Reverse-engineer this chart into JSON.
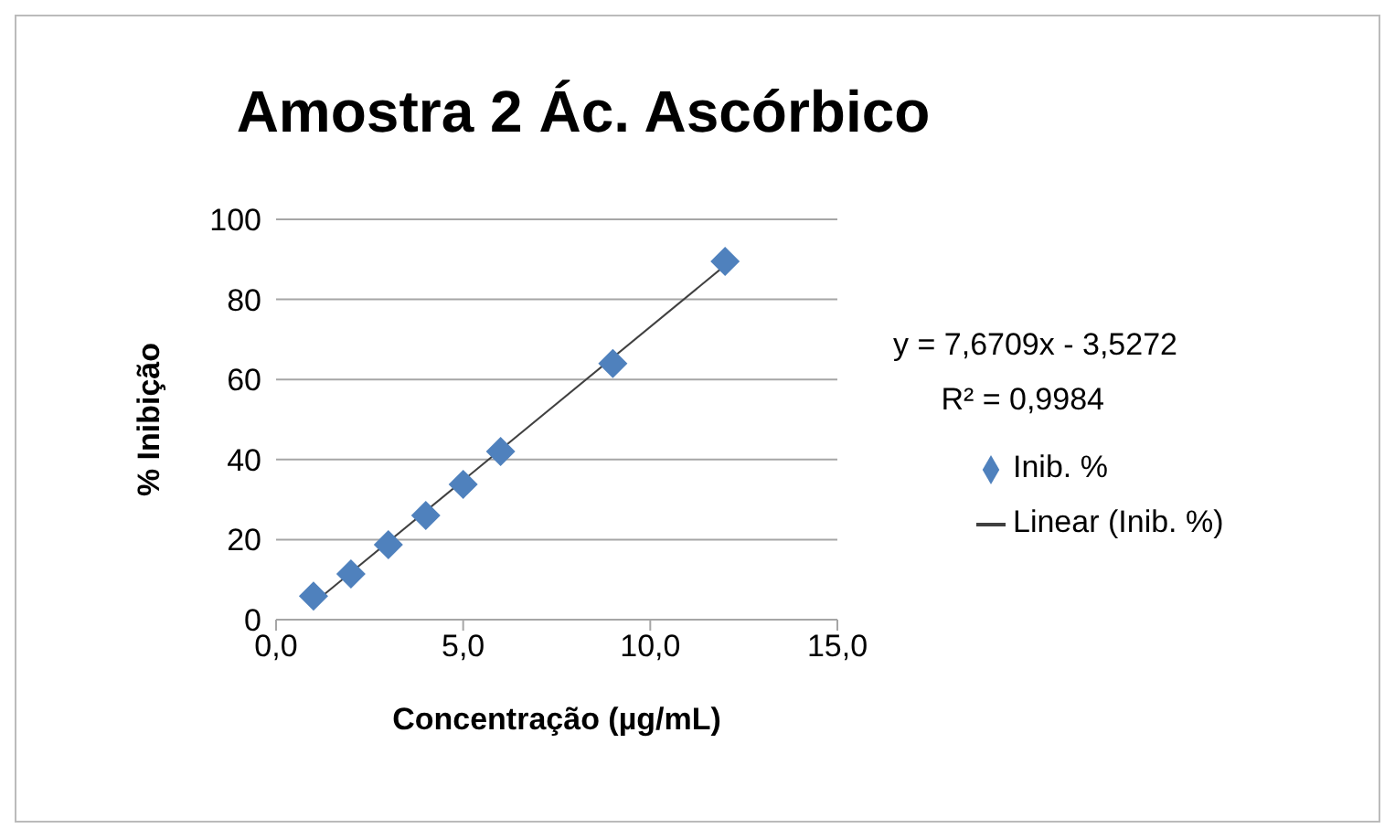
{
  "chart_data": {
    "type": "scatter",
    "title": "Amostra 2 Ác. Ascórbico",
    "xlabel": "Concentração  (µg/mL)",
    "ylabel": "% Inibição",
    "x": [
      1,
      2,
      3,
      4,
      5,
      6,
      9,
      12
    ],
    "series": [
      {
        "name": "Inib. %",
        "color": "#4f81bd",
        "marker": "diamond",
        "values": [
          5.9,
          11.4,
          18.7,
          26,
          33.8,
          42,
          64,
          89.5
        ]
      },
      {
        "name": "Linear (Inib. %)",
        "type": "line",
        "color": "#404040",
        "marker": "none",
        "x": [
          1,
          12
        ],
        "values": [
          4.1,
          88.5
        ]
      }
    ],
    "xlim": [
      0,
      15
    ],
    "xticks": [
      {
        "value": 0,
        "label": "0,0"
      },
      {
        "value": 5,
        "label": "5,0"
      },
      {
        "value": 10,
        "label": "10,0"
      },
      {
        "value": 15,
        "label": "15,0"
      }
    ],
    "ylim": [
      0,
      100
    ],
    "yticks": [
      0,
      20,
      40,
      60,
      80,
      100
    ],
    "grid": "y",
    "legend": "right",
    "annotations": [
      "y = 7,6709x - 3,5272",
      "R² = 0,9984"
    ]
  }
}
